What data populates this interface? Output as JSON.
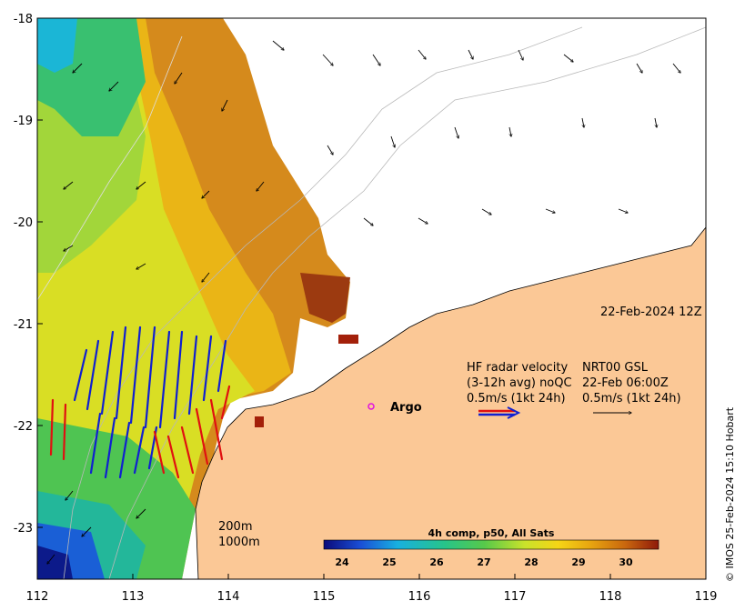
{
  "map": {
    "date_label": "22-Feb-2024 12Z",
    "credit": "© IMOS 25-Feb-2024 15:10 Hobart",
    "x_ticks": [
      "112",
      "113",
      "114",
      "115",
      "116",
      "117",
      "118",
      "119"
    ],
    "y_ticks": [
      "-18",
      "-19",
      "-20",
      "-21",
      "-22",
      "-23"
    ],
    "lon_range": [
      112,
      119
    ],
    "lat_range": [
      -23.5,
      -18
    ],
    "land_color": "#fbc896",
    "sst_colors": [
      "#0a0a7a",
      "#1a4fd6",
      "#18b0e0",
      "#27c48a",
      "#57c94a",
      "#c9e22b",
      "#f5d516",
      "#e7a310",
      "#c9670e",
      "#8f1a0a"
    ],
    "hf_radar": {
      "line1": "HF radar velocity",
      "line2": "(3-12h avg) noQC",
      "line3": "0.5m/s (1kt 24h)"
    },
    "gsl": {
      "line1": "NRT00 GSL",
      "line2": "22-Feb 06:00Z",
      "line3": "0.5m/s (1kt 24h)"
    },
    "argo_label": "Argo",
    "depth_labels": [
      "200m",
      "1000m"
    ],
    "colorbar": {
      "title": "4h comp, p50, All Sats",
      "ticks": [
        "24",
        "25",
        "26",
        "27",
        "28",
        "29",
        "30"
      ]
    }
  }
}
